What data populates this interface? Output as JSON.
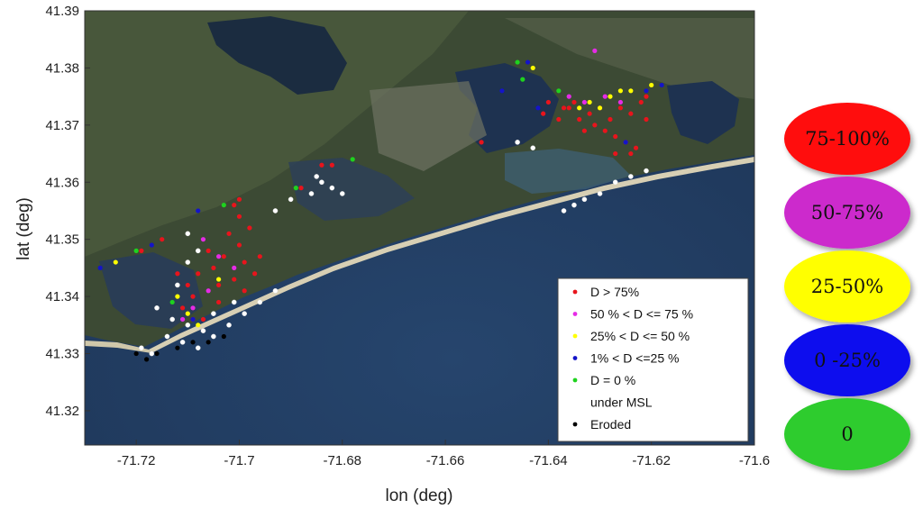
{
  "chart_data": {
    "type": "scatter",
    "xlabel": "lon (deg)",
    "ylabel": "lat (deg)",
    "xlim": [
      -71.73,
      -71.6
    ],
    "ylim": [
      41.314,
      41.39
    ],
    "x_ticks": [
      -71.72,
      -71.7,
      -71.68,
      -71.66,
      -71.64,
      -71.62,
      -71.6
    ],
    "x_tick_labels": [
      "-71.72",
      "-71.7",
      "-71.68",
      "-71.66",
      "-71.64",
      "-71.62",
      "-71.6"
    ],
    "y_ticks": [
      41.32,
      41.33,
      41.34,
      41.35,
      41.36,
      41.37,
      41.38,
      41.39
    ],
    "y_tick_labels": [
      "41.32",
      "41.33",
      "41.34",
      "41.35",
      "41.36",
      "41.37",
      "41.38",
      "41.39"
    ],
    "background": "satellite-image",
    "grid": false,
    "legend_position": "bottom-right",
    "legend_entries": [
      {
        "label": "D > 75%",
        "color": "#e8141c"
      },
      {
        "label": "50 % < D <= 75 %",
        "color": "#e62be6"
      },
      {
        "label": "25% < D <= 50 %",
        "color": "#ffff00"
      },
      {
        "label": "1% < D <=25 %",
        "color": "#1414c8"
      },
      {
        "label": " D = 0 %",
        "color": "#1ed21e"
      },
      {
        "label": "under MSL",
        "color": "#ffffff"
      },
      {
        "label": "Eroded",
        "color": "#000000"
      }
    ],
    "series": [
      {
        "name": "D > 75%",
        "color": "#e8141c",
        "points": [
          [
            -71.705,
            41.345
          ],
          [
            -71.703,
            41.347
          ],
          [
            -71.701,
            41.343
          ],
          [
            -71.699,
            41.346
          ],
          [
            -71.7,
            41.349
          ],
          [
            -71.702,
            41.351
          ],
          [
            -71.698,
            41.352
          ],
          [
            -71.7,
            41.354
          ],
          [
            -71.697,
            41.344
          ],
          [
            -71.704,
            41.342
          ],
          [
            -71.706,
            41.348
          ],
          [
            -71.708,
            41.344
          ],
          [
            -71.709,
            41.34
          ],
          [
            -71.711,
            41.338
          ],
          [
            -71.71,
            41.342
          ],
          [
            -71.707,
            41.336
          ],
          [
            -71.712,
            41.344
          ],
          [
            -71.699,
            41.341
          ],
          [
            -71.696,
            41.347
          ],
          [
            -71.701,
            41.356
          ],
          [
            -71.704,
            41.339
          ],
          [
            -71.709,
            41.336
          ],
          [
            -71.684,
            41.363
          ],
          [
            -71.682,
            41.363
          ],
          [
            -71.688,
            41.359
          ],
          [
            -71.636,
            41.373
          ],
          [
            -71.634,
            41.371
          ],
          [
            -71.632,
            41.372
          ],
          [
            -71.63,
            41.373
          ],
          [
            -71.628,
            41.371
          ],
          [
            -71.626,
            41.373
          ],
          [
            -71.624,
            41.372
          ],
          [
            -71.622,
            41.374
          ],
          [
            -71.638,
            41.371
          ],
          [
            -71.64,
            41.374
          ],
          [
            -71.629,
            41.369
          ],
          [
            -71.627,
            41.368
          ],
          [
            -71.625,
            41.367
          ],
          [
            -71.623,
            41.366
          ],
          [
            -71.631,
            41.37
          ],
          [
            -71.635,
            41.374
          ],
          [
            -71.621,
            41.375
          ],
          [
            -71.633,
            41.369
          ],
          [
            -71.624,
            41.365
          ],
          [
            -71.637,
            41.373
          ],
          [
            -71.627,
            41.365
          ],
          [
            -71.621,
            41.371
          ],
          [
            -71.653,
            41.367
          ],
          [
            -71.641,
            41.372
          ],
          [
            -71.7,
            41.357
          ],
          [
            -71.719,
            41.348
          ],
          [
            -71.715,
            41.35
          ]
        ]
      },
      {
        "name": "50 % < D <= 75 %",
        "color": "#e62be6",
        "points": [
          [
            -71.701,
            41.345
          ],
          [
            -71.706,
            41.341
          ],
          [
            -71.709,
            41.338
          ],
          [
            -71.633,
            41.374
          ],
          [
            -71.629,
            41.375
          ],
          [
            -71.626,
            41.374
          ],
          [
            -71.631,
            41.383
          ],
          [
            -71.707,
            41.35
          ],
          [
            -71.711,
            41.336
          ],
          [
            -71.704,
            41.347
          ],
          [
            -71.636,
            41.375
          ]
        ]
      },
      {
        "name": "25% < D <= 50 %",
        "color": "#ffff00",
        "points": [
          [
            -71.632,
            41.374
          ],
          [
            -71.628,
            41.375
          ],
          [
            -71.624,
            41.376
          ],
          [
            -71.63,
            41.373
          ],
          [
            -71.62,
            41.377
          ],
          [
            -71.643,
            41.38
          ],
          [
            -71.71,
            41.337
          ],
          [
            -71.708,
            41.335
          ],
          [
            -71.724,
            41.346
          ],
          [
            -71.704,
            41.343
          ],
          [
            -71.634,
            41.373
          ],
          [
            -71.626,
            41.376
          ],
          [
            -71.712,
            41.34
          ]
        ]
      },
      {
        "name": "1% < D <=25 %",
        "color": "#1414c8",
        "points": [
          [
            -71.618,
            41.377
          ],
          [
            -71.625,
            41.367
          ],
          [
            -71.649,
            41.376
          ],
          [
            -71.644,
            41.381
          ],
          [
            -71.708,
            41.355
          ],
          [
            -71.717,
            41.349
          ],
          [
            -71.727,
            41.345
          ],
          [
            -71.709,
            41.336
          ],
          [
            -71.642,
            41.373
          ],
          [
            -71.621,
            41.376
          ]
        ]
      },
      {
        "name": " D = 0 %",
        "color": "#1ed21e",
        "points": [
          [
            -71.646,
            41.381
          ],
          [
            -71.678,
            41.364
          ],
          [
            -71.689,
            41.359
          ],
          [
            -71.703,
            41.356
          ],
          [
            -71.72,
            41.348
          ],
          [
            -71.638,
            41.376
          ],
          [
            -71.713,
            41.339
          ],
          [
            -71.645,
            41.378
          ]
        ]
      },
      {
        "name": "under MSL",
        "color": "#ffffff",
        "points": [
          [
            -71.714,
            41.333
          ],
          [
            -71.711,
            41.332
          ],
          [
            -71.708,
            41.331
          ],
          [
            -71.705,
            41.333
          ],
          [
            -71.702,
            41.335
          ],
          [
            -71.699,
            41.337
          ],
          [
            -71.696,
            41.339
          ],
          [
            -71.693,
            41.341
          ],
          [
            -71.71,
            41.335
          ],
          [
            -71.707,
            41.334
          ],
          [
            -71.713,
            41.336
          ],
          [
            -71.716,
            41.338
          ],
          [
            -71.712,
            41.342
          ],
          [
            -71.71,
            41.346
          ],
          [
            -71.708,
            41.348
          ],
          [
            -71.719,
            41.331
          ],
          [
            -71.717,
            41.33
          ],
          [
            -71.684,
            41.36
          ],
          [
            -71.682,
            41.359
          ],
          [
            -71.686,
            41.358
          ],
          [
            -71.68,
            41.358
          ],
          [
            -71.685,
            41.361
          ],
          [
            -71.69,
            41.357
          ],
          [
            -71.693,
            41.355
          ],
          [
            -71.705,
            41.337
          ],
          [
            -71.701,
            41.339
          ],
          [
            -71.633,
            41.357
          ],
          [
            -71.63,
            41.358
          ],
          [
            -71.627,
            41.36
          ],
          [
            -71.624,
            41.361
          ],
          [
            -71.621,
            41.362
          ],
          [
            -71.635,
            41.356
          ],
          [
            -71.637,
            41.355
          ],
          [
            -71.646,
            41.367
          ],
          [
            -71.643,
            41.366
          ],
          [
            -71.71,
            41.351
          ]
        ]
      },
      {
        "name": "Eroded",
        "color": "#000000",
        "points": [
          [
            -71.72,
            41.33
          ],
          [
            -71.716,
            41.33
          ],
          [
            -71.712,
            41.331
          ],
          [
            -71.709,
            41.332
          ],
          [
            -71.706,
            41.332
          ],
          [
            -71.703,
            41.333
          ],
          [
            -71.718,
            41.329
          ]
        ]
      }
    ]
  },
  "category_ovals": [
    {
      "label": "75-100%",
      "color": "#ff0c0c"
    },
    {
      "label": "50-75%",
      "color": "#cc2ccc"
    },
    {
      "label": "25-50%",
      "color": "#ffff00"
    },
    {
      "label": "0 -25%",
      "color": "#0a0aee"
    },
    {
      "label": "0",
      "color": "#2ecc2e"
    }
  ]
}
